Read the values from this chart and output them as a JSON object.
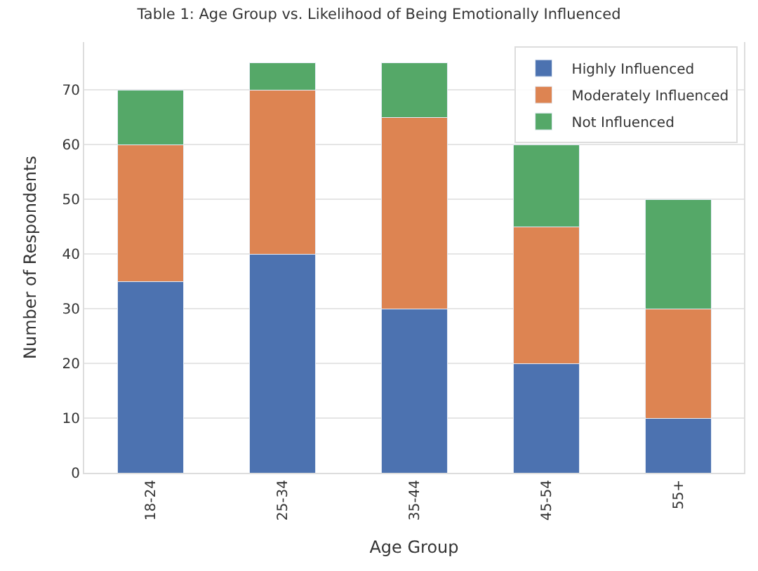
{
  "chart_data": {
    "type": "bar",
    "title": "Table 1: Age Group vs. Likelihood of Being Emotionally Influenced",
    "xlabel": "Age Group",
    "ylabel": "Number of Respondents",
    "categories": [
      "18-24",
      "25-34",
      "35-44",
      "45-54",
      "55+"
    ],
    "stacked": true,
    "series": [
      {
        "name": "Highly Influenced",
        "color": "#4c72b0",
        "values": [
          35,
          40,
          30,
          20,
          10
        ]
      },
      {
        "name": "Moderately Influenced",
        "color": "#dd8452",
        "values": [
          25,
          30,
          35,
          25,
          20
        ]
      },
      {
        "name": "Not Influenced",
        "color": "#55a868",
        "values": [
          10,
          5,
          10,
          15,
          20
        ]
      }
    ],
    "ylim": [
      0,
      78.75
    ],
    "yticks": [
      0,
      10,
      20,
      30,
      40,
      50,
      60,
      70
    ],
    "grid": "y",
    "legend": "top right"
  }
}
